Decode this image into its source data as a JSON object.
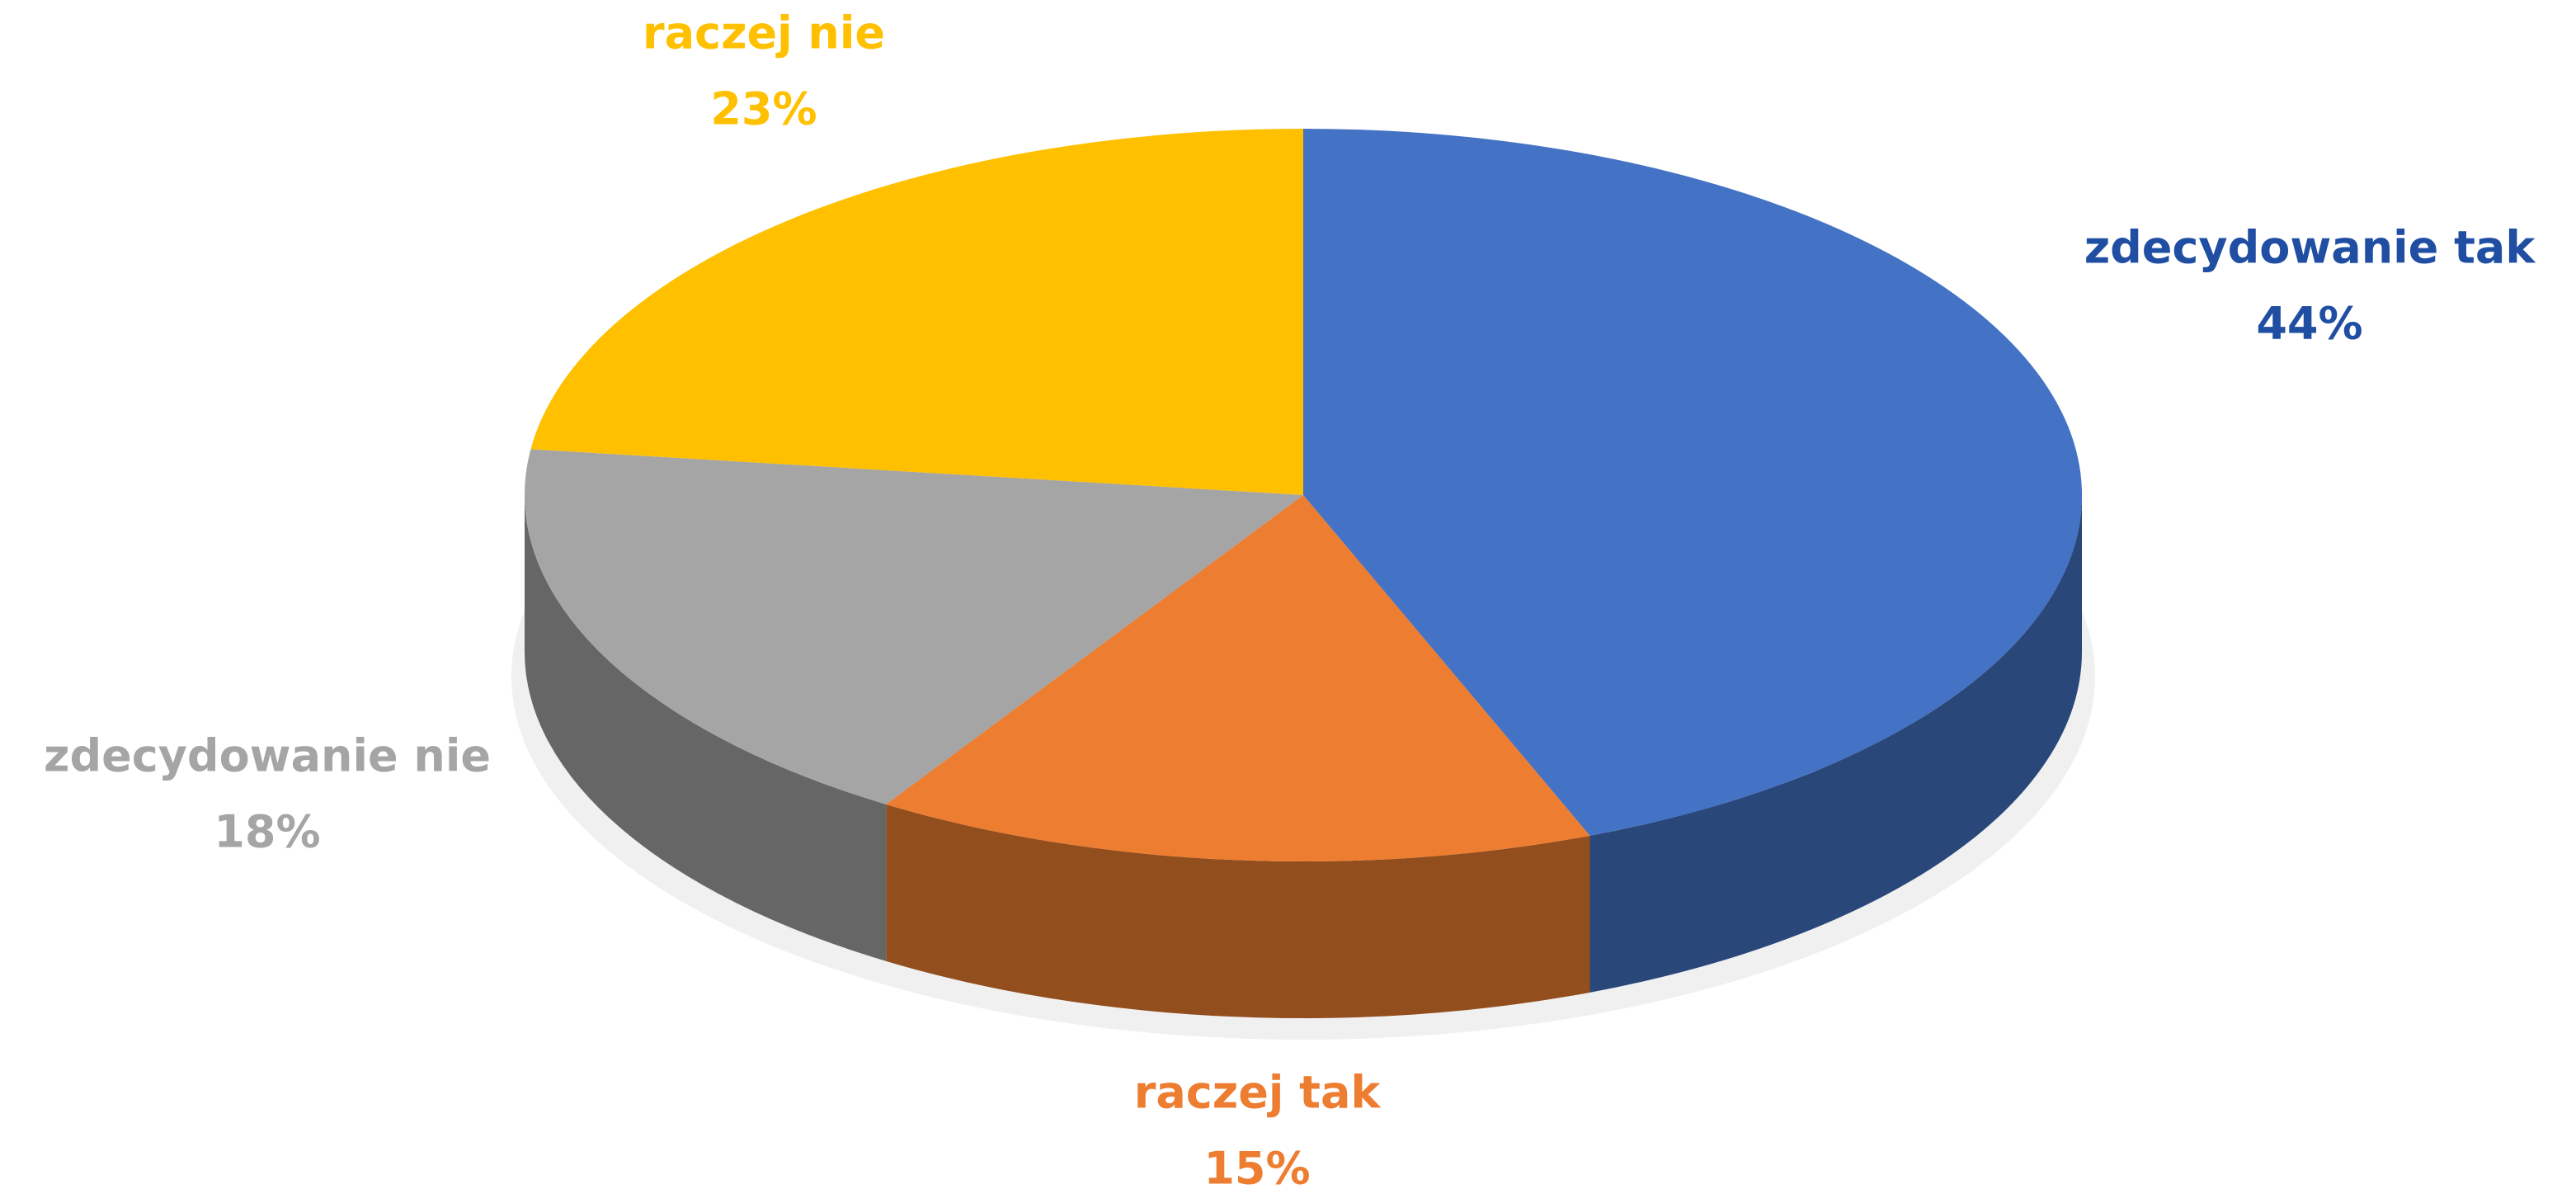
{
  "chart_data": {
    "type": "pie",
    "categories": [
      "zdecydowanie tak",
      "raczej tak",
      "zdecydowanie nie",
      "raczej nie"
    ],
    "values": [
      44,
      15,
      18,
      23
    ],
    "value_labels": [
      "44%",
      "15%",
      "18%",
      "23%"
    ],
    "colors": [
      "#4472c4",
      "#ed7d31",
      "#a5a5a5",
      "#ffc000"
    ],
    "label_colors": [
      "#1f4ea3",
      "#ed7d31",
      "#a5a5a5",
      "#ffc000"
    ]
  }
}
